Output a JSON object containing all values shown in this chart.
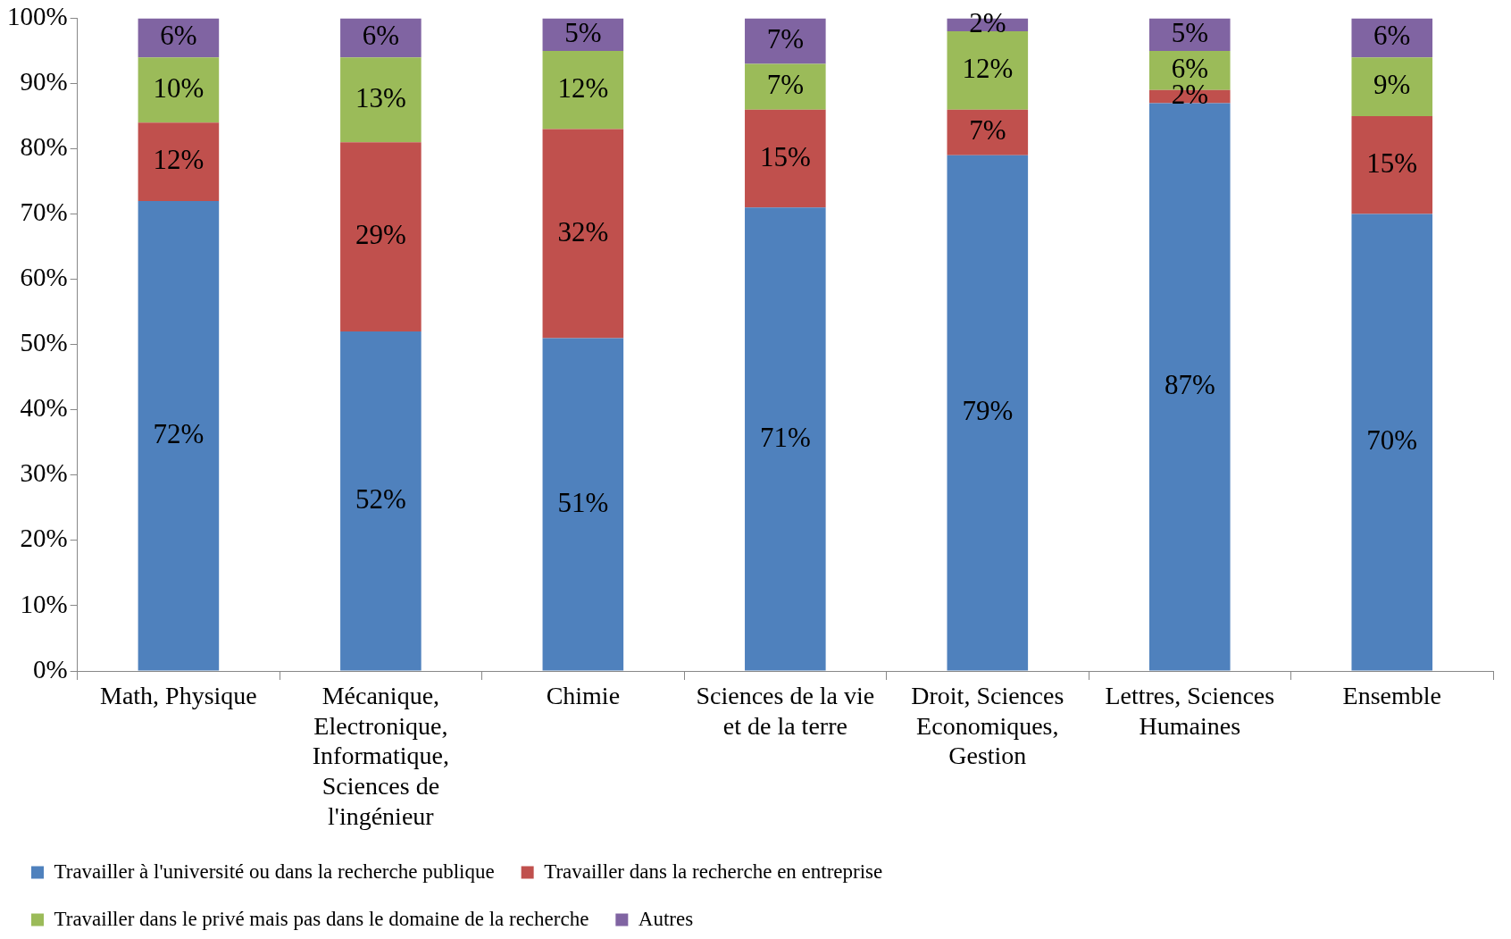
{
  "chart_data": {
    "type": "bar",
    "stacked": true,
    "categories": [
      "Math, Physique",
      "Mécanique, Electronique, Informatique, Sciences de l'ingénieur",
      "Chimie",
      "Sciences de la vie et de la terre",
      "Droit, Sciences Economiques, Gestion",
      "Lettres, Sciences Humaines",
      "Ensemble"
    ],
    "series": [
      {
        "name": "Travailler à l'université ou dans la recherche publique",
        "color": "#4f81bd",
        "values": [
          72,
          52,
          51,
          71,
          79,
          87,
          70
        ],
        "value_labels": [
          "72%",
          "52%",
          "51%",
          "71%",
          "79%",
          "87%",
          "70%"
        ]
      },
      {
        "name": "Travailler dans la recherche en entreprise",
        "color": "#c0504d",
        "values": [
          12,
          29,
          32,
          15,
          7,
          2,
          15
        ],
        "value_labels": [
          "12%",
          "29%",
          "32%",
          "15%",
          "7%",
          "2%",
          "15%"
        ]
      },
      {
        "name": "Travailler dans le privé mais pas dans le domaine de la recherche",
        "color": "#9bbb59",
        "values": [
          10,
          13,
          12,
          7,
          12,
          6,
          9
        ],
        "value_labels": [
          "10%",
          "13%",
          "12%",
          "7%",
          "12%",
          "6%",
          "9%"
        ]
      },
      {
        "name": "Autres",
        "color": "#8064a2",
        "values": [
          6,
          6,
          5,
          7,
          2,
          5,
          6
        ],
        "value_labels": [
          "6%",
          "6%",
          "5%",
          "7%",
          "2%",
          "5%",
          "6%"
        ]
      }
    ],
    "ylim": [
      0,
      100
    ],
    "yticks": [
      {
        "value": 0,
        "label": "0%"
      },
      {
        "value": 10,
        "label": "10%"
      },
      {
        "value": 20,
        "label": "20%"
      },
      {
        "value": 30,
        "label": "30%"
      },
      {
        "value": 40,
        "label": "40%"
      },
      {
        "value": 50,
        "label": "50%"
      },
      {
        "value": 60,
        "label": "60%"
      },
      {
        "value": 70,
        "label": "70%"
      },
      {
        "value": 80,
        "label": "80%"
      },
      {
        "value": 90,
        "label": "90%"
      },
      {
        "value": 100,
        "label": "100%"
      }
    ],
    "grid": false,
    "legend": "bottom"
  }
}
